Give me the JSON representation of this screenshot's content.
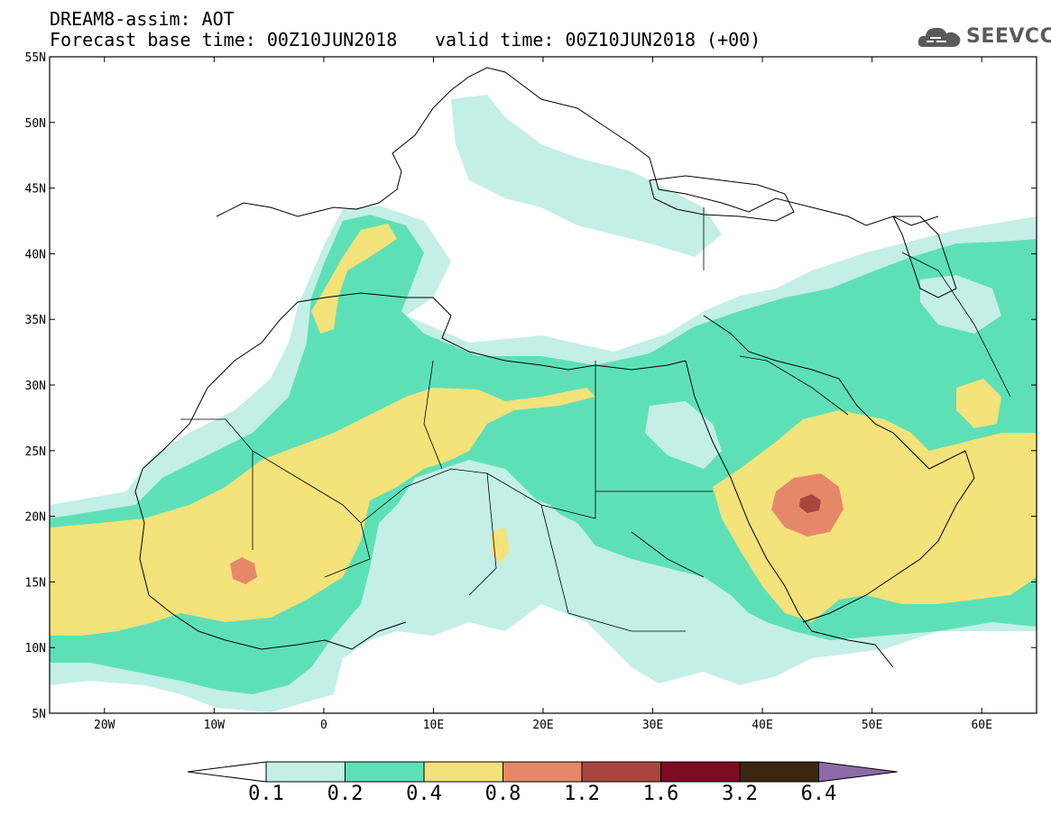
{
  "header": {
    "title_line1": "DREAM8-assim: AOT",
    "title_line2_left": "Forecast base time: 00Z10JUN2018",
    "title_line2_right": "valid time: 00Z10JUN2018 (+00)"
  },
  "logo": {
    "text": "SEEVCCC",
    "icon": "cloud-logo-icon"
  },
  "map": {
    "lat_labels": [
      "55N",
      "50N",
      "45N",
      "40N",
      "35N",
      "30N",
      "25N",
      "20N",
      "15N",
      "10N",
      "5N"
    ],
    "lon_labels": [
      "20W",
      "10W",
      "0",
      "10E",
      "20E",
      "30E",
      "40E",
      "50E",
      "60E"
    ]
  },
  "colorbar": {
    "labels": [
      "0.1",
      "0.2",
      "0.4",
      "0.8",
      "1.2",
      "1.6",
      "3.2",
      "6.4"
    ],
    "colors": [
      "#ffffff",
      "#c3efe6",
      "#5ee0b7",
      "#f4e27a",
      "#e5886a",
      "#a8463e",
      "#7d0b22",
      "#3b2612",
      "#8f6aa8"
    ]
  }
}
